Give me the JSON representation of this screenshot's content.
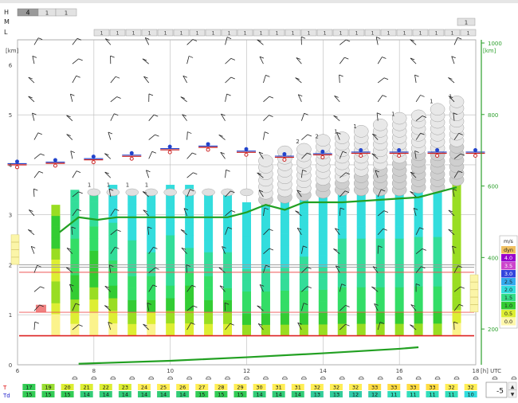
{
  "rows": {
    "h_label": "H",
    "h_values": [
      "4",
      "1",
      "1"
    ],
    "m_label": "M",
    "l_label": "L",
    "top_value": "1",
    "l_value": "1"
  },
  "axes": {
    "left_unit": "[km]",
    "left_ticks": [
      "0",
      "1",
      "2",
      "3",
      "4",
      "5",
      "6"
    ],
    "right_unit": "[km]",
    "right_ticks": [
      "200",
      "400",
      "600",
      "800",
      "1000"
    ],
    "x_ticks": [
      "6",
      "8",
      "10",
      "12",
      "14",
      "16",
      "18"
    ],
    "x_unit": "[h] UTC"
  },
  "legend": {
    "title": "m/s",
    "entries": [
      {
        "label": "dyn",
        "color": "#f0c060"
      },
      {
        "label": "4.0",
        "color": "#9900cc"
      },
      {
        "label": "3.5",
        "color": "#cc44cc"
      },
      {
        "label": "3.0",
        "color": "#3344dd"
      },
      {
        "label": "2.5",
        "color": "#33aaee"
      },
      {
        "label": "2.0",
        "color": "#33dddd"
      },
      {
        "label": "1.5",
        "color": "#33dd88"
      },
      {
        "label": "1.0",
        "color": "#33cc33"
      },
      {
        "label": "0.5",
        "color": "#ddee33"
      },
      {
        "label": "0.0",
        "color": "#fff7aa"
      }
    ]
  },
  "table": {
    "t_label": "T",
    "td_label": "Td",
    "t": [
      "17",
      "19",
      "20",
      "21",
      "22",
      "23",
      "24",
      "25",
      "26",
      "27",
      "28",
      "29",
      "30",
      "31",
      "31",
      "32",
      "32",
      "32",
      "33",
      "33",
      "33",
      "33",
      "32",
      "32"
    ],
    "td": [
      "15",
      "15",
      "15",
      "14",
      "14",
      "14",
      "14",
      "14",
      "14",
      "15",
      "15",
      "15",
      "14",
      "14",
      "14",
      "13",
      "13",
      "12",
      "12",
      "11",
      "11",
      "11",
      "11",
      "10"
    ],
    "t_colors": [
      "#33cc55",
      "#99dd33",
      "#ddee33",
      "#ddee33",
      "#ddee33",
      "#ddee33",
      "#ffee55",
      "#ffee55",
      "#ffee55",
      "#ffee55",
      "#ffee55",
      "#ffee55",
      "#ffee55",
      "#ffee55",
      "#ffee55",
      "#ffee55",
      "#ffee55",
      "#ffee55",
      "#ffdd44",
      "#ffdd44",
      "#ffdd44",
      "#ffdd44",
      "#ffee55",
      "#ffee55"
    ],
    "td_colors": [
      "#33cc55",
      "#33cc55",
      "#33cc55",
      "#33cc77",
      "#33cc77",
      "#33cc77",
      "#33cc77",
      "#33cc77",
      "#33cc77",
      "#33cc55",
      "#33cc55",
      "#33cc55",
      "#33cc77",
      "#33cc77",
      "#33cc77",
      "#33cc99",
      "#33cc99",
      "#33ccaa",
      "#33ccaa",
      "#33ddbb",
      "#33ddbb",
      "#33ddbb",
      "#33ddbb",
      "#33dddd"
    ]
  },
  "stepper": {
    "value": "-5",
    "up": "▲",
    "down": "▼"
  },
  "chart_data": {
    "type": "area",
    "x_ticks": [
      6,
      8,
      10,
      12,
      14,
      16,
      18
    ],
    "x_range": [
      6,
      18
    ],
    "left_range_km": [
      0,
      6.5
    ],
    "right_range": [
      100,
      1000
    ],
    "columns": [
      {
        "hour": 6.5,
        "top": 1.2,
        "rh": [
          0,
          0,
          0,
          0,
          0,
          0,
          0,
          0,
          0,
          0,
          0,
          0
        ]
      },
      {
        "hour": 7.0,
        "top": 3.2,
        "rh": [
          1,
          1,
          2,
          3,
          3,
          2,
          2,
          3,
          4,
          4,
          4,
          3
        ]
      },
      {
        "hour": 7.5,
        "top": 3.5,
        "rh": [
          1,
          2,
          3,
          4,
          4,
          5,
          5,
          5,
          6,
          6,
          6,
          6
        ]
      },
      {
        "hour": 8.0,
        "top": 3.5,
        "rh": [
          1,
          1,
          2,
          3,
          4,
          4,
          4,
          5,
          5,
          6,
          6,
          6
        ]
      },
      {
        "hour": 8.5,
        "top": 3.6,
        "rh": [
          1,
          2,
          3,
          4,
          5,
          5,
          6,
          6,
          6,
          7,
          7,
          7
        ]
      },
      {
        "hour": 9.0,
        "top": 3.45,
        "rh": [
          2,
          3,
          4,
          5,
          5,
          6,
          6,
          6,
          7,
          7,
          7,
          7
        ]
      },
      {
        "hour": 9.5,
        "top": 3.45,
        "rh": [
          1,
          2,
          4,
          5,
          5,
          6,
          6,
          7,
          7,
          7,
          7,
          7
        ]
      },
      {
        "hour": 10.0,
        "top": 3.6,
        "rh": [
          2,
          3,
          4,
          5,
          6,
          6,
          6,
          6,
          7,
          7,
          7,
          7
        ]
      },
      {
        "hour": 10.5,
        "top": 3.6,
        "rh": [
          2,
          3,
          4,
          4,
          5,
          6,
          6,
          7,
          7,
          7,
          7,
          7
        ]
      },
      {
        "hour": 11.0,
        "top": 3.45,
        "rh": [
          2,
          3,
          4,
          5,
          5,
          6,
          6,
          7,
          7,
          7,
          7,
          7
        ]
      },
      {
        "hour": 11.5,
        "top": 3.45,
        "rh": [
          2,
          3,
          4,
          5,
          6,
          6,
          6,
          7,
          7,
          8,
          8,
          8
        ]
      },
      {
        "hour": 12.0,
        "top": 3.25,
        "rh": [
          3,
          4,
          5,
          5,
          6,
          6,
          7,
          7,
          8,
          8,
          8,
          8
        ]
      },
      {
        "hour": 12.5,
        "top": 3.25,
        "rh": [
          3,
          4,
          5,
          5,
          6,
          6,
          7,
          7,
          7,
          7,
          7,
          7
        ]
      },
      {
        "hour": 13.0,
        "top": 3.3,
        "rh": [
          3,
          4,
          5,
          5,
          6,
          6,
          7,
          7,
          7,
          7,
          7,
          7
        ]
      },
      {
        "hour": 13.5,
        "top": 3.3,
        "rh": [
          3,
          4,
          5,
          5,
          6,
          6,
          6,
          7,
          7,
          7,
          7,
          7
        ]
      },
      {
        "hour": 14.0,
        "top": 3.35,
        "rh": [
          3,
          4,
          5,
          5,
          6,
          6,
          7,
          7,
          7,
          7,
          7,
          7
        ]
      },
      {
        "hour": 14.5,
        "top": 3.5,
        "rh": [
          3,
          4,
          5,
          5,
          6,
          6,
          6,
          6,
          7,
          7,
          7,
          7
        ]
      },
      {
        "hour": 15.0,
        "top": 3.5,
        "rh": [
          3,
          4,
          5,
          5,
          6,
          6,
          6,
          6,
          7,
          7,
          7,
          7
        ]
      },
      {
        "hour": 15.5,
        "top": 3.5,
        "rh": [
          3,
          4,
          5,
          5,
          6,
          6,
          6,
          6,
          7,
          7,
          7,
          7
        ]
      },
      {
        "hour": 16.0,
        "top": 3.5,
        "rh": [
          3,
          4,
          5,
          5,
          6,
          6,
          6,
          6,
          7,
          7,
          7,
          7
        ]
      },
      {
        "hour": 16.5,
        "top": 3.55,
        "rh": [
          3,
          4,
          5,
          5,
          6,
          6,
          6,
          6,
          7,
          7,
          7,
          7
        ]
      },
      {
        "hour": 17.0,
        "top": 3.55,
        "rh": [
          3,
          4,
          5,
          5,
          6,
          6,
          6,
          6,
          7,
          7,
          7,
          7
        ]
      },
      {
        "hour": 17.5,
        "top": 3.7,
        "rh": [
          1,
          2,
          3,
          3,
          3,
          3,
          3,
          3,
          3,
          3,
          3,
          3
        ]
      }
    ],
    "boundary_layer_line": [
      {
        "x": 7.1,
        "y": 2.65
      },
      {
        "x": 7.6,
        "y": 2.95
      },
      {
        "x": 8.1,
        "y": 2.9
      },
      {
        "x": 8.6,
        "y": 2.95
      },
      {
        "x": 9.5,
        "y": 2.95
      },
      {
        "x": 10.5,
        "y": 2.95
      },
      {
        "x": 11.5,
        "y": 2.95
      },
      {
        "x": 12.0,
        "y": 3.05
      },
      {
        "x": 12.5,
        "y": 3.2
      },
      {
        "x": 13.0,
        "y": 3.1
      },
      {
        "x": 13.5,
        "y": 3.25
      },
      {
        "x": 14.5,
        "y": 3.25
      },
      {
        "x": 15.5,
        "y": 3.3
      },
      {
        "x": 16.5,
        "y": 3.35
      },
      {
        "x": 17.0,
        "y": 3.45
      },
      {
        "x": 17.5,
        "y": 3.55
      }
    ],
    "ground_line": [
      {
        "x": 7.6,
        "y": 0.02
      },
      {
        "x": 10.0,
        "y": 0.08
      },
      {
        "x": 12.0,
        "y": 0.15
      },
      {
        "x": 14.0,
        "y": 0.23
      },
      {
        "x": 16.0,
        "y": 0.32
      },
      {
        "x": 16.5,
        "y": 0.35
      }
    ],
    "reference_lines_km": [
      {
        "y": 0.58,
        "color": "#dd2222"
      },
      {
        "y": 1.05,
        "color": "#ee5555"
      },
      {
        "y": 1.85,
        "color": "#ee5555"
      },
      {
        "y": 1.95,
        "color": "#999999"
      },
      {
        "y": 2.0,
        "color": "#999999"
      }
    ],
    "cloud_columns": [
      {
        "hour": 12.5,
        "top": 4.2,
        "base": 3.3,
        "label": ""
      },
      {
        "hour": 13.0,
        "top": 4.3,
        "base": 3.35,
        "label": ""
      },
      {
        "hour": 13.5,
        "top": 4.4,
        "base": 3.4,
        "label": "2"
      },
      {
        "hour": 14.0,
        "top": 4.5,
        "base": 3.45,
        "label": "2"
      },
      {
        "hour": 14.5,
        "top": 4.6,
        "base": 3.5,
        "label": "1"
      },
      {
        "hour": 15.0,
        "top": 4.7,
        "base": 3.5,
        "label": "1"
      },
      {
        "hour": 15.5,
        "top": 4.85,
        "base": 3.5,
        "label": ""
      },
      {
        "hour": 16.0,
        "top": 4.95,
        "base": 3.5,
        "label": "1"
      },
      {
        "hour": 16.5,
        "top": 5.1,
        "base": 3.55,
        "label": ""
      },
      {
        "hour": 17.0,
        "top": 5.2,
        "base": 3.55,
        "label": "1"
      },
      {
        "hour": 17.5,
        "top": 5.3,
        "base": 3.7,
        "label": "1"
      }
    ],
    "small_clouds": [
      {
        "hour": 8.0,
        "label": "1"
      },
      {
        "hour": 8.5,
        "label": "1"
      },
      {
        "hour": 9.0,
        "label": "1"
      },
      {
        "hour": 9.5,
        "label": "1"
      },
      {
        "hour": 10.0,
        "label": ""
      },
      {
        "hour": 10.5,
        "label": ""
      },
      {
        "hour": 11.0,
        "label": ""
      },
      {
        "hour": 11.5,
        "label": ""
      },
      {
        "hour": 12.0,
        "label": ""
      }
    ],
    "cloud_base_markers": [
      {
        "hour": 6.0,
        "y": 4.0
      },
      {
        "hour": 7.0,
        "y": 4.03
      },
      {
        "hour": 8.0,
        "y": 4.1
      },
      {
        "hour": 9.0,
        "y": 4.17
      },
      {
        "hour": 10.0,
        "y": 4.3
      },
      {
        "hour": 11.0,
        "y": 4.35
      },
      {
        "hour": 12.0,
        "y": 4.25
      },
      {
        "hour": 13.0,
        "y": 4.15
      },
      {
        "hour": 14.0,
        "y": 4.2
      },
      {
        "hour": 15.0,
        "y": 4.23
      },
      {
        "hour": 16.0,
        "y": 4.23
      },
      {
        "hour": 17.0,
        "y": 4.23
      },
      {
        "hour": 18.0,
        "y": 4.23
      }
    ],
    "left_edge_blocks": [
      2.6,
      2.45,
      2.3,
      2.15
    ],
    "right_edge_blocks": [
      1.8,
      1.65,
      1.5,
      1.35,
      1.2
    ]
  }
}
